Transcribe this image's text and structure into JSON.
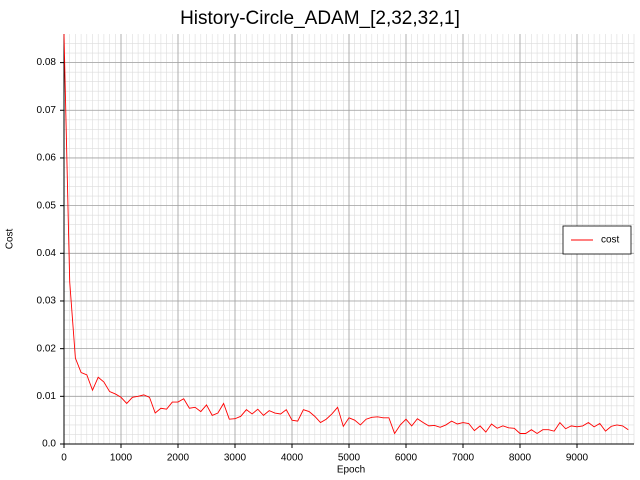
{
  "chart_data": {
    "type": "line",
    "title": "History-Circle_ADAM_[2,32,32,1]",
    "xlabel": "Epoch",
    "ylabel": "Cost",
    "x": [
      0,
      100,
      200,
      300,
      400,
      500,
      600,
      700,
      800,
      900,
      1000,
      1100,
      1200,
      1300,
      1400,
      1500,
      1600,
      1700,
      1800,
      1900,
      2000,
      2100,
      2200,
      2300,
      2400,
      2500,
      2600,
      2700,
      2800,
      2900,
      3000,
      3100,
      3200,
      3300,
      3400,
      3500,
      3600,
      3700,
      3800,
      3900,
      4000,
      4100,
      4200,
      4300,
      4400,
      4500,
      4600,
      4700,
      4800,
      4900,
      5000,
      5100,
      5200,
      5300,
      5400,
      5500,
      5600,
      5700,
      5800,
      5900,
      6000,
      6100,
      6200,
      6300,
      6400,
      6500,
      6600,
      6700,
      6800,
      6900,
      7000,
      7100,
      7200,
      7300,
      7400,
      7500,
      7600,
      7700,
      7800,
      7900,
      8000,
      8100,
      8200,
      8300,
      8400,
      8500,
      8600,
      8700,
      8800,
      8900,
      9000,
      9100,
      9200,
      9300,
      9400,
      9500,
      9600,
      9700,
      9800,
      9900
    ],
    "series": [
      {
        "name": "cost",
        "color": "#ff0000",
        "values": [
          0.086,
          0.034,
          0.018,
          0.015,
          0.0145,
          0.0113,
          0.014,
          0.013,
          0.011,
          0.0105,
          0.0098,
          0.0085,
          0.0098,
          0.01,
          0.0103,
          0.0098,
          0.0065,
          0.0075,
          0.0073,
          0.0088,
          0.0088,
          0.0095,
          0.0075,
          0.0077,
          0.0068,
          0.0082,
          0.006,
          0.0065,
          0.0085,
          0.0052,
          0.0053,
          0.0058,
          0.0072,
          0.0063,
          0.0073,
          0.006,
          0.007,
          0.0065,
          0.0063,
          0.0072,
          0.005,
          0.0048,
          0.0072,
          0.0068,
          0.0058,
          0.0045,
          0.0052,
          0.0063,
          0.0077,
          0.0037,
          0.0055,
          0.005,
          0.004,
          0.0052,
          0.0056,
          0.0057,
          0.0055,
          0.0055,
          0.0022,
          0.004,
          0.0052,
          0.0038,
          0.0053,
          0.0045,
          0.0038,
          0.0039,
          0.0035,
          0.004,
          0.0048,
          0.0042,
          0.0045,
          0.0043,
          0.0028,
          0.0038,
          0.0025,
          0.0042,
          0.0033,
          0.0038,
          0.0034,
          0.0033,
          0.0022,
          0.0022,
          0.003,
          0.0022,
          0.003,
          0.003,
          0.0027,
          0.0045,
          0.0032,
          0.0038,
          0.0036,
          0.0038,
          0.0045,
          0.0036,
          0.0043,
          0.0027,
          0.0037,
          0.004,
          0.0038,
          0.003
        ]
      }
    ],
    "xlim": [
      0,
      10000
    ],
    "ylim": [
      0,
      0.086
    ],
    "xticks": [
      0,
      1000,
      2000,
      3000,
      4000,
      5000,
      6000,
      7000,
      8000,
      9000
    ],
    "yticks": [
      {
        "value": 0,
        "label": "0.0"
      },
      0.01,
      0.02,
      0.03,
      0.04,
      0.05,
      0.06,
      0.07,
      0.08
    ],
    "grid": true,
    "legend": "right"
  }
}
